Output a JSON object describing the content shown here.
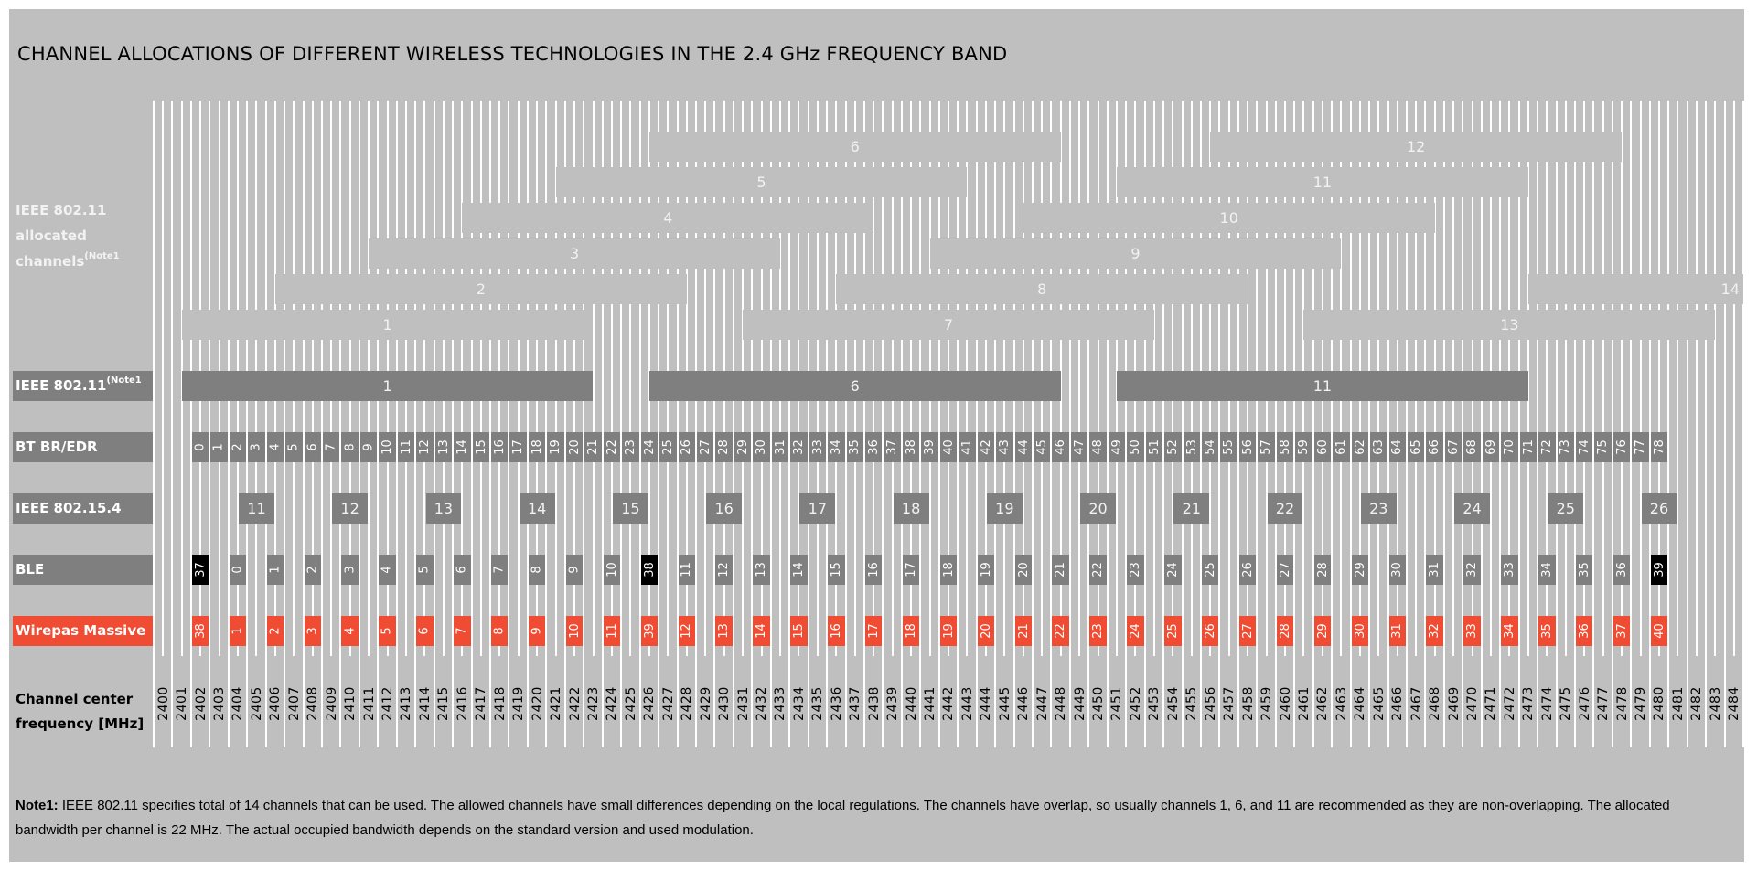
{
  "title": "CHANNEL ALLOCATIONS OF DIFFERENT WIRELESS TECHNOLOGIES IN THE 2.4 GHz FREQUENCY BAND",
  "labels": {
    "alloc_line1": "IEEE 802.11",
    "alloc_line2": "allocated",
    "alloc_line3": "channels",
    "alloc_sup": "(Note1",
    "ieee80211": "IEEE 802.11",
    "ieee80211_sup": "(Note1",
    "bt": "BT BR/EDR",
    "zigbee": "IEEE 802.15.4",
    "ble": "BLE",
    "wirepas": "Wirepas Massive",
    "freq_line1": "Channel center",
    "freq_line2": "frequency [MHz]"
  },
  "note": {
    "bold": "Note1:",
    "text": " IEEE 802.11 specifies total of 14 channels that can be used. The allowed channels have small differences depending on the local regulations. The channels have overlap, so usually channels 1, 6, and 11 are recommended as they are non-overlapping. The allocated bandwidth per channel is 22 MHz. The actual occupied bandwidth depends on the standard version and used modulation."
  },
  "colors": {
    "background": "#bfbfbf",
    "dark_grey": "#7f7f7f",
    "advertising_black": "#000000",
    "wirepas_red": "#f04b33"
  },
  "chart_data": {
    "type": "table",
    "title": "CHANNEL ALLOCATIONS OF DIFFERENT WIRELESS TECHNOLOGIES IN THE 2.4 GHz FREQUENCY BAND",
    "xlabel": "Channel center frequency [MHz]",
    "frequency_range_mhz": [
      2400,
      2484
    ],
    "ieee80211_allocated": {
      "bandwidth_mhz": 22,
      "channels": [
        {
          "ch": "1",
          "center": 2412,
          "row": 5
        },
        {
          "ch": "2",
          "center": 2417,
          "row": 4
        },
        {
          "ch": "3",
          "center": 2422,
          "row": 3
        },
        {
          "ch": "4",
          "center": 2427,
          "row": 2
        },
        {
          "ch": "5",
          "center": 2432,
          "row": 1
        },
        {
          "ch": "6",
          "center": 2437,
          "row": 0
        },
        {
          "ch": "7",
          "center": 2442,
          "row": 5
        },
        {
          "ch": "8",
          "center": 2447,
          "row": 4
        },
        {
          "ch": "9",
          "center": 2452,
          "row": 3
        },
        {
          "ch": "10",
          "center": 2457,
          "row": 2
        },
        {
          "ch": "11",
          "center": 2462,
          "row": 1
        },
        {
          "ch": "12",
          "center": 2467,
          "row": 0
        },
        {
          "ch": "13",
          "center": 2472,
          "row": 5
        },
        {
          "ch": "14",
          "center": 2484,
          "row": 4
        }
      ]
    },
    "ieee80211_nonoverlapping": [
      {
        "ch": "1",
        "center": 2412
      },
      {
        "ch": "6",
        "center": 2437
      },
      {
        "ch": "11",
        "center": 2462
      }
    ],
    "bt_br_edr": {
      "first_channel": 0,
      "last_channel": 78,
      "first_center": 2402,
      "spacing_mhz": 1
    },
    "ieee802154": [
      {
        "ch": "11",
        "center": 2405
      },
      {
        "ch": "12",
        "center": 2410
      },
      {
        "ch": "13",
        "center": 2415
      },
      {
        "ch": "14",
        "center": 2420
      },
      {
        "ch": "15",
        "center": 2425
      },
      {
        "ch": "16",
        "center": 2430
      },
      {
        "ch": "17",
        "center": 2435
      },
      {
        "ch": "18",
        "center": 2440
      },
      {
        "ch": "19",
        "center": 2445
      },
      {
        "ch": "20",
        "center": 2450
      },
      {
        "ch": "21",
        "center": 2455
      },
      {
        "ch": "22",
        "center": 2460
      },
      {
        "ch": "23",
        "center": 2465
      },
      {
        "ch": "24",
        "center": 2470
      },
      {
        "ch": "25",
        "center": 2475
      },
      {
        "ch": "26",
        "center": 2480
      }
    ],
    "ble": [
      {
        "ch": "37",
        "center": 2402,
        "adv": true
      },
      {
        "ch": "0",
        "center": 2404
      },
      {
        "ch": "1",
        "center": 2406
      },
      {
        "ch": "2",
        "center": 2408
      },
      {
        "ch": "3",
        "center": 2410
      },
      {
        "ch": "4",
        "center": 2412
      },
      {
        "ch": "5",
        "center": 2414
      },
      {
        "ch": "6",
        "center": 2416
      },
      {
        "ch": "7",
        "center": 2418
      },
      {
        "ch": "8",
        "center": 2420
      },
      {
        "ch": "9",
        "center": 2422
      },
      {
        "ch": "10",
        "center": 2424
      },
      {
        "ch": "38",
        "center": 2426,
        "adv": true
      },
      {
        "ch": "11",
        "center": 2428
      },
      {
        "ch": "12",
        "center": 2430
      },
      {
        "ch": "13",
        "center": 2432
      },
      {
        "ch": "14",
        "center": 2434
      },
      {
        "ch": "15",
        "center": 2436
      },
      {
        "ch": "16",
        "center": 2438
      },
      {
        "ch": "17",
        "center": 2440
      },
      {
        "ch": "18",
        "center": 2442
      },
      {
        "ch": "19",
        "center": 2444
      },
      {
        "ch": "20",
        "center": 2446
      },
      {
        "ch": "21",
        "center": 2448
      },
      {
        "ch": "22",
        "center": 2450
      },
      {
        "ch": "23",
        "center": 2452
      },
      {
        "ch": "24",
        "center": 2454
      },
      {
        "ch": "25",
        "center": 2456
      },
      {
        "ch": "26",
        "center": 2458
      },
      {
        "ch": "27",
        "center": 2460
      },
      {
        "ch": "28",
        "center": 2462
      },
      {
        "ch": "29",
        "center": 2464
      },
      {
        "ch": "30",
        "center": 2466
      },
      {
        "ch": "31",
        "center": 2468
      },
      {
        "ch": "32",
        "center": 2470
      },
      {
        "ch": "33",
        "center": 2472
      },
      {
        "ch": "34",
        "center": 2474
      },
      {
        "ch": "35",
        "center": 2476
      },
      {
        "ch": "36",
        "center": 2478
      },
      {
        "ch": "39",
        "center": 2480,
        "adv": true
      }
    ],
    "wirepas_massive": [
      {
        "ch": "38",
        "center": 2402
      },
      {
        "ch": "1",
        "center": 2404
      },
      {
        "ch": "2",
        "center": 2406
      },
      {
        "ch": "3",
        "center": 2408
      },
      {
        "ch": "4",
        "center": 2410
      },
      {
        "ch": "5",
        "center": 2412
      },
      {
        "ch": "6",
        "center": 2414
      },
      {
        "ch": "7",
        "center": 2416
      },
      {
        "ch": "8",
        "center": 2418
      },
      {
        "ch": "9",
        "center": 2420
      },
      {
        "ch": "10",
        "center": 2422
      },
      {
        "ch": "11",
        "center": 2424
      },
      {
        "ch": "39",
        "center": 2426
      },
      {
        "ch": "12",
        "center": 2428
      },
      {
        "ch": "13",
        "center": 2430
      },
      {
        "ch": "14",
        "center": 2432
      },
      {
        "ch": "15",
        "center": 2434
      },
      {
        "ch": "16",
        "center": 2436
      },
      {
        "ch": "17",
        "center": 2438
      },
      {
        "ch": "18",
        "center": 2440
      },
      {
        "ch": "19",
        "center": 2442
      },
      {
        "ch": "20",
        "center": 2444
      },
      {
        "ch": "21",
        "center": 2446
      },
      {
        "ch": "22",
        "center": 2448
      },
      {
        "ch": "23",
        "center": 2450
      },
      {
        "ch": "24",
        "center": 2452
      },
      {
        "ch": "25",
        "center": 2454
      },
      {
        "ch": "26",
        "center": 2456
      },
      {
        "ch": "27",
        "center": 2458
      },
      {
        "ch": "28",
        "center": 2460
      },
      {
        "ch": "29",
        "center": 2462
      },
      {
        "ch": "30",
        "center": 2464
      },
      {
        "ch": "31",
        "center": 2466
      },
      {
        "ch": "32",
        "center": 2468
      },
      {
        "ch": "33",
        "center": 2470
      },
      {
        "ch": "34",
        "center": 2472
      },
      {
        "ch": "35",
        "center": 2474
      },
      {
        "ch": "36",
        "center": 2476
      },
      {
        "ch": "37",
        "center": 2478
      },
      {
        "ch": "40",
        "center": 2480
      }
    ]
  }
}
